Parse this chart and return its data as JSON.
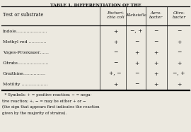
{
  "title": "TABLE 1. DIFFERENTIATION OF THE",
  "col_headers_line1": [
    "Test or substrate",
    "Escheri-",
    "Klebsiella",
    "Aero-",
    "Citro-"
  ],
  "col_headers_line2": [
    "",
    "chia coli",
    "",
    "bacter",
    "bacter"
  ],
  "rows": [
    [
      "Indole…………………",
      "+",
      "−, +",
      "−",
      "−"
    ],
    [
      "Methyl red …………",
      "+",
      "−",
      "−",
      "+"
    ],
    [
      "Voges-Proskauer……",
      "−",
      "+",
      "+",
      "−"
    ],
    [
      "Citrate…………………",
      "−",
      "+",
      "+",
      "+"
    ],
    [
      "Ornithine……………",
      "+, −",
      "−",
      "+",
      "−, +"
    ],
    [
      "Motility ………………",
      "+",
      "−",
      "+",
      "+"
    ]
  ],
  "footnote_lines": [
    "  * Symbols: + = positive reaction; − = nega-",
    "tive reaction; +, − = may be either + or −",
    "(the sign that appears first indicates the reaction",
    "given by the majority of strains)."
  ],
  "bg_color": "#ece9e0",
  "text_color": "#111111"
}
